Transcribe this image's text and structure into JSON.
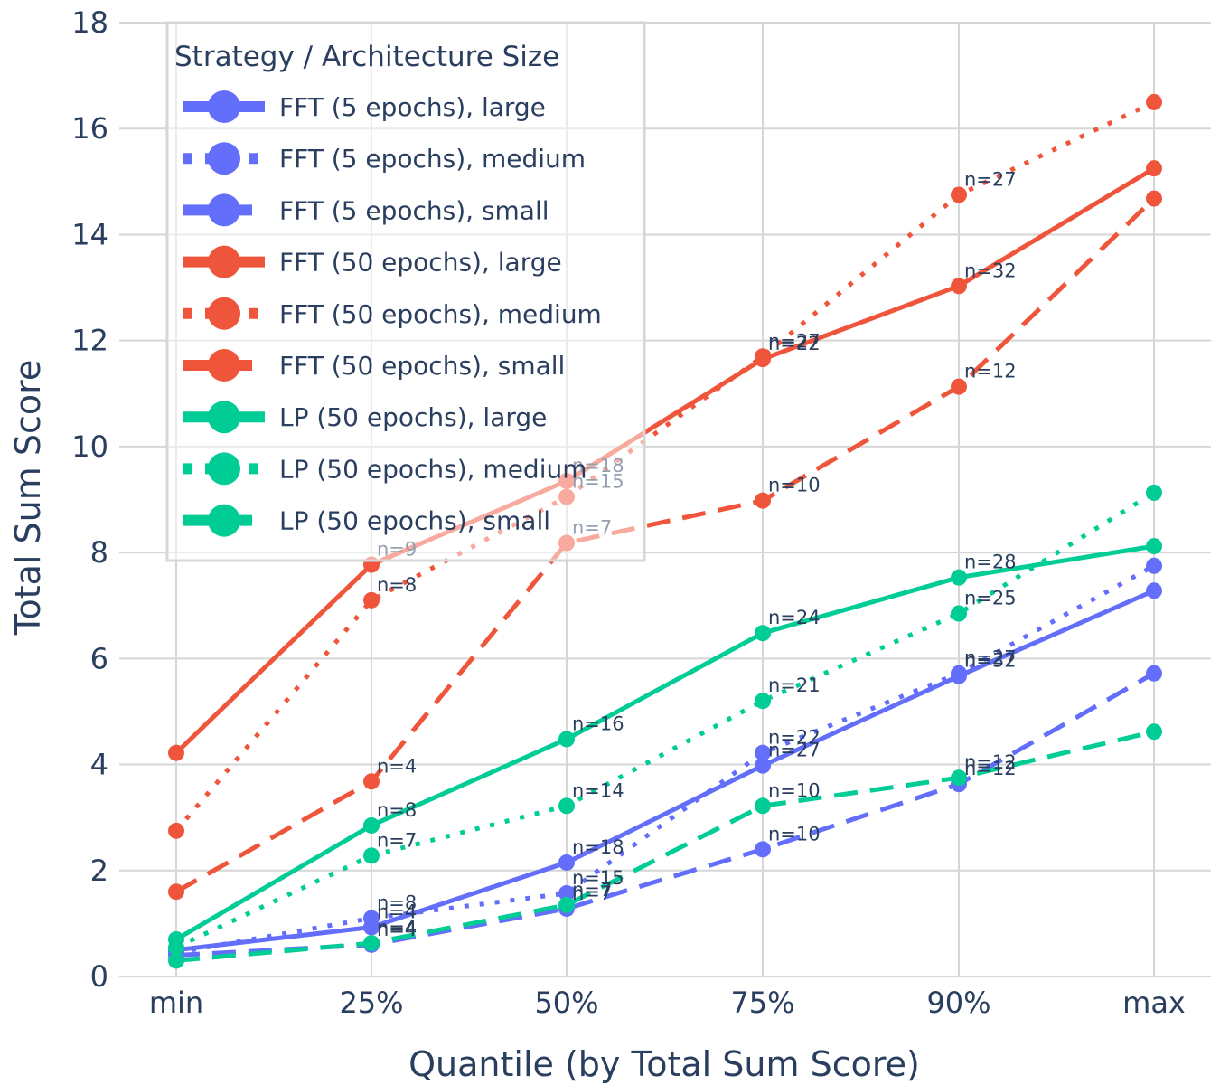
{
  "chart_data": {
    "type": "line",
    "xlabel": "Quantile (by Total Sum Score)",
    "ylabel": "Total Sum Score",
    "categories": [
      "min",
      "25%",
      "50%",
      "75%",
      "90%",
      "max"
    ],
    "ylim": [
      0,
      18
    ],
    "yticks": [
      "0",
      "2",
      "4",
      "6",
      "8",
      "10",
      "12",
      "14",
      "16",
      "18"
    ],
    "grid": true,
    "legend": {
      "title": "Strategy / Architecture Size",
      "position": "top-left"
    },
    "series": [
      {
        "name": "FFT (5 epochs), large",
        "color": "#636efa",
        "dash": "solid",
        "values": [
          0.5,
          0.93,
          2.15,
          3.98,
          5.67,
          7.28
        ],
        "labels": [
          "",
          "n=4",
          "n=18",
          "n=27",
          "n=32",
          ""
        ]
      },
      {
        "name": "FFT (5 epochs), medium",
        "color": "#636efa",
        "dash": "dot",
        "values": [
          0.45,
          1.1,
          1.57,
          4.22,
          5.72,
          7.75
        ],
        "labels": [
          "",
          "n=8",
          "n=15",
          "n=22",
          "n=27",
          ""
        ]
      },
      {
        "name": "FFT (5 epochs), small",
        "color": "#636efa",
        "dash": "dash",
        "values": [
          0.4,
          0.6,
          1.28,
          2.4,
          3.63,
          5.72
        ],
        "labels": [
          "",
          "n=4",
          "n=7",
          "n=10",
          "n=12",
          ""
        ]
      },
      {
        "name": "FFT (50 epochs), large",
        "color": "#ef553b",
        "dash": "solid",
        "values": [
          4.22,
          7.77,
          9.35,
          11.65,
          13.03,
          15.25
        ],
        "labels": [
          "",
          "n=9",
          "n=18",
          "n=22",
          "n=32",
          ""
        ]
      },
      {
        "name": "FFT (50 epochs), medium",
        "color": "#ef553b",
        "dash": "dot",
        "values": [
          2.75,
          7.1,
          9.05,
          11.7,
          14.75,
          16.5
        ],
        "labels": [
          "",
          "n=8",
          "n=15",
          "n=27",
          "n=27",
          ""
        ]
      },
      {
        "name": "FFT (50 epochs), small",
        "color": "#ef553b",
        "dash": "dash",
        "values": [
          1.6,
          3.68,
          8.18,
          8.98,
          11.13,
          14.68
        ],
        "labels": [
          "",
          "n=4",
          "n=7",
          "n=10",
          "n=12",
          ""
        ]
      },
      {
        "name": "LP (50 epochs), large",
        "color": "#00cc96",
        "dash": "solid",
        "values": [
          0.7,
          2.85,
          4.48,
          6.48,
          7.53,
          8.12
        ],
        "labels": [
          "",
          "n=8",
          "n=16",
          "n=24",
          "n=28",
          ""
        ]
      },
      {
        "name": "LP (50 epochs), medium",
        "color": "#00cc96",
        "dash": "dot",
        "values": [
          0.55,
          2.28,
          3.22,
          5.2,
          6.85,
          9.13
        ],
        "labels": [
          "",
          "n=7",
          "n=14",
          "n=21",
          "n=25",
          ""
        ]
      },
      {
        "name": "LP (50 epochs), small",
        "color": "#00cc96",
        "dash": "dash",
        "values": [
          0.3,
          0.63,
          1.35,
          3.22,
          3.75,
          4.62
        ],
        "labels": [
          "",
          "n=4",
          "n=7",
          "n=10",
          "n=12",
          ""
        ]
      }
    ]
  }
}
